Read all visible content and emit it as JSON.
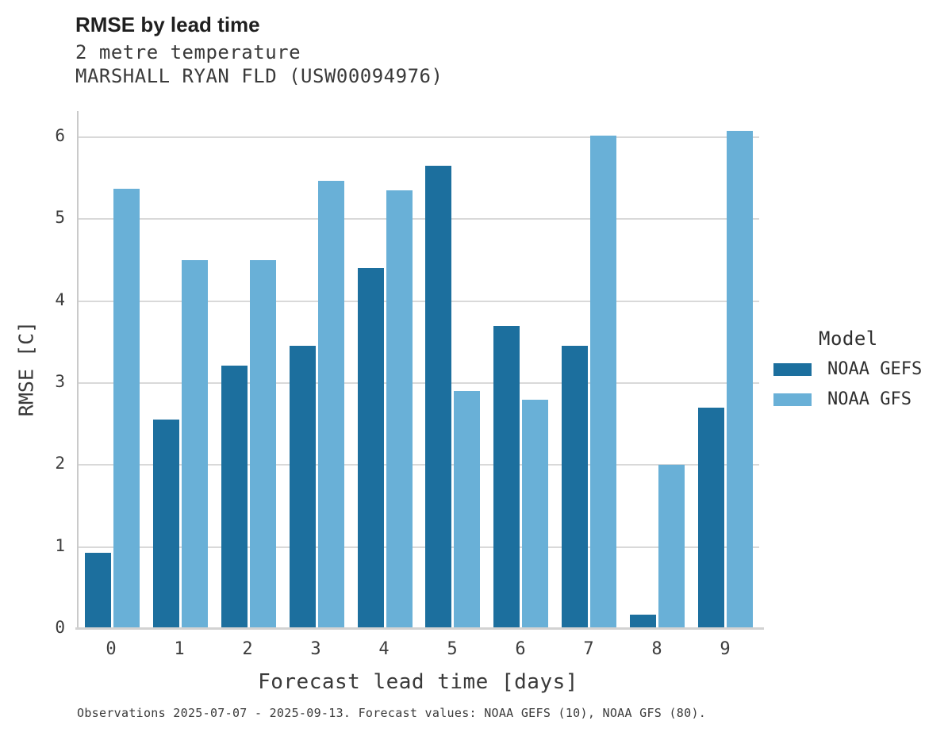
{
  "header": {
    "title": "RMSE by lead time",
    "subtitle_line1": "2 metre temperature",
    "subtitle_line2": "MARSHALL RYAN FLD (USW00094976)"
  },
  "chart_data": {
    "type": "bar",
    "title": "RMSE by lead time",
    "subtitle": "2 metre temperature — MARSHALL RYAN FLD (USW00094976)",
    "categories": [
      "0",
      "1",
      "2",
      "3",
      "4",
      "5",
      "6",
      "7",
      "8",
      "9"
    ],
    "series": [
      {
        "name": "NOAA GEFS",
        "color": "#1C6F9E",
        "values": [
          0.93,
          2.56,
          3.21,
          3.46,
          4.4,
          5.65,
          3.7,
          3.46,
          0.17,
          2.7
        ]
      },
      {
        "name": "NOAA GFS",
        "color": "#69B0D7",
        "values": [
          5.37,
          4.5,
          4.5,
          5.47,
          5.35,
          2.9,
          2.8,
          6.02,
          2.0,
          6.08
        ]
      }
    ],
    "xlabel": "Forecast lead time [days]",
    "ylabel": "RMSE [C]",
    "ylim": [
      0,
      6.32
    ],
    "yticks": [
      0,
      1,
      2,
      3,
      4,
      5,
      6
    ],
    "grid": "horizontal",
    "legend_title": "Model",
    "legend_position": "right"
  },
  "colors": {
    "noaa_gefs": "#1C6F9E",
    "noaa_gfs": "#69B0D7",
    "gridline": "#d9d9d9",
    "text": "#3a3a3a"
  },
  "caption": "Observations 2025-07-07 - 2025-09-13. Forecast values: NOAA GEFS (10), NOAA GFS (80)."
}
